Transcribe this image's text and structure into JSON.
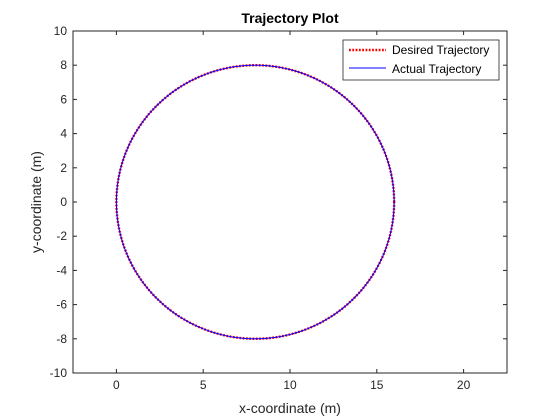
{
  "chart_data": {
    "type": "line",
    "title": "Trajectory Plot",
    "xlabel": "x-coordinate (m)",
    "ylabel": "y-coordinate (m)",
    "xlim": [
      -2.5,
      22.5
    ],
    "ylim": [
      -10,
      10
    ],
    "xticks": [
      0,
      5,
      10,
      15,
      20
    ],
    "yticks": [
      -10,
      -8,
      -6,
      -4,
      -2,
      0,
      2,
      4,
      6,
      8,
      10
    ],
    "grid": false,
    "legend_position": "top-right",
    "series": [
      {
        "name": "Desired Trajectory",
        "color": "#ff0000",
        "style": "dotted",
        "shape": "circle",
        "center": [
          8,
          0
        ],
        "radius": 8
      },
      {
        "name": "Actual Trajectory",
        "color": "#0000ff",
        "style": "solid",
        "shape": "circle",
        "center": [
          8,
          0
        ],
        "radius": 8
      }
    ]
  }
}
